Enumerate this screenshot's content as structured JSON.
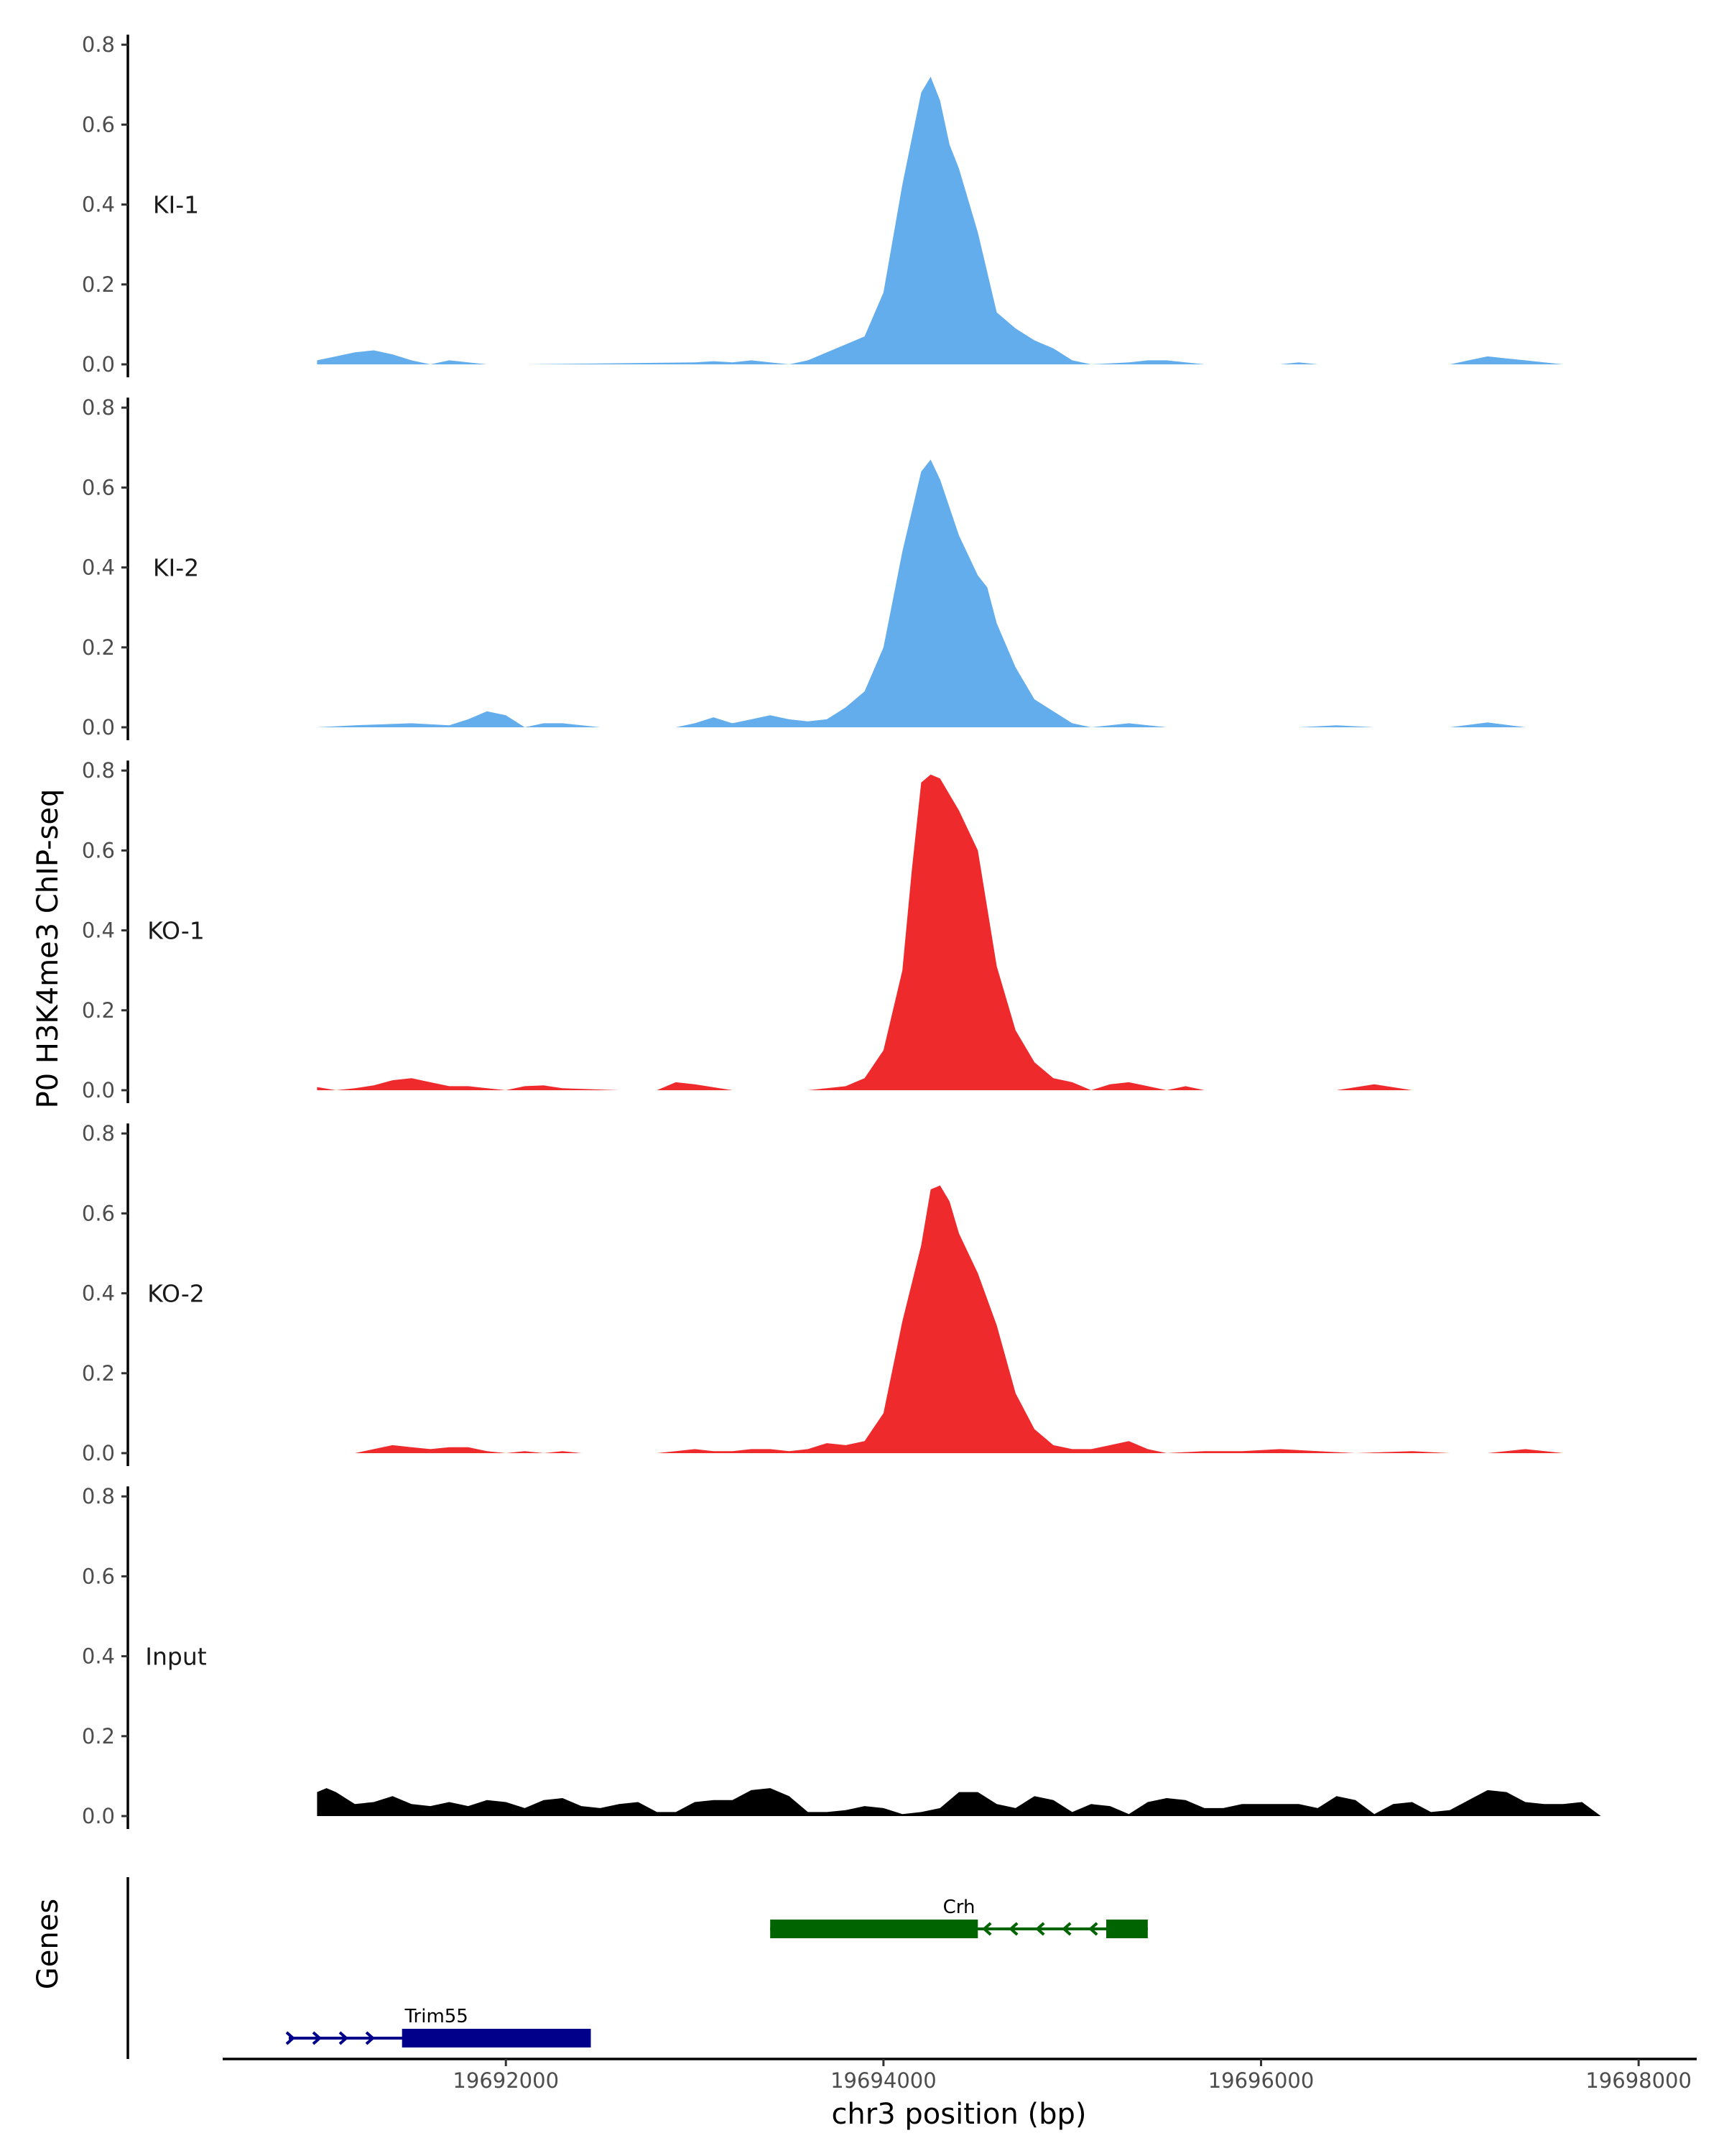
{
  "chart_data": [
    {
      "type": "area",
      "ylabel": "P0 H3K4me3 ChIP-seq",
      "ylim": [
        0,
        0.8
      ],
      "yticks": [
        "0.0",
        "0.2",
        "0.4",
        "0.6",
        "0.8"
      ],
      "xlim": [
        19690500,
        19698300
      ],
      "grid": false,
      "tracks": [
        {
          "name": "KI-1",
          "color": "#63ADEC",
          "x": [
            19691000,
            19691100,
            19691200,
            19691300,
            19691400,
            19691500,
            19691600,
            19691700,
            19691800,
            19691900,
            19692000,
            19692100,
            19693000,
            19693100,
            19693200,
            19693300,
            19693400,
            19693500,
            19693600,
            19693700,
            19693800,
            19693900,
            19694000,
            19694100,
            19694200,
            19694250,
            19694300,
            19694350,
            19694400,
            19694500,
            19694600,
            19694700,
            19694800,
            19694900,
            19695000,
            19695100,
            19695300,
            19695400,
            19695500,
            19695700,
            19696000,
            19696100,
            19696200,
            19696300,
            19696400,
            19696500,
            19696600,
            19696700,
            19696800,
            19696900,
            19697000,
            19697100,
            19697200,
            19697300,
            19697400,
            19697500,
            19697600,
            19697700
          ],
          "y": [
            0.01,
            0.02,
            0.03,
            0.035,
            0.025,
            0.01,
            0,
            0.01,
            0.005,
            0,
            0,
            0,
            0.005,
            0.008,
            0.005,
            0.01,
            0.005,
            0,
            0.01,
            0.03,
            0.05,
            0.07,
            0.18,
            0.45,
            0.68,
            0.72,
            0.66,
            0.55,
            0.49,
            0.33,
            0.13,
            0.09,
            0.06,
            0.04,
            0.01,
            0,
            0.005,
            0.01,
            0.01,
            0,
            0,
            0,
            0.005,
            0,
            0,
            0,
            0,
            0,
            0,
            0,
            0,
            0.01,
            0.02,
            0.015,
            0.01,
            0.005,
            0,
            0
          ]
        },
        {
          "name": "KI-2",
          "color": "#63ADEC",
          "x": [
            19691000,
            19691200,
            19691500,
            19691700,
            19691800,
            19691900,
            19692000,
            19692100,
            19692200,
            19692300,
            19692500,
            19692900,
            19693000,
            19693100,
            19693200,
            19693300,
            19693400,
            19693500,
            19693600,
            19693700,
            19693800,
            19693900,
            19694000,
            19694100,
            19694200,
            19694250,
            19694300,
            19694350,
            19694400,
            19694500,
            19694550,
            19694600,
            19694700,
            19694800,
            19694900,
            19695000,
            19695100,
            19695300,
            19695500,
            19695800,
            19696000,
            19696200,
            19696400,
            19696600,
            19697000,
            19697200,
            19697400,
            19697600
          ],
          "y": [
            0,
            0.005,
            0.01,
            0.005,
            0.02,
            0.04,
            0.03,
            0,
            0.01,
            0.01,
            0,
            0,
            0.01,
            0.025,
            0.01,
            0.02,
            0.03,
            0.02,
            0.015,
            0.02,
            0.05,
            0.09,
            0.2,
            0.44,
            0.64,
            0.67,
            0.62,
            0.55,
            0.48,
            0.38,
            0.35,
            0.26,
            0.15,
            0.07,
            0.04,
            0.01,
            0,
            0.01,
            0,
            0,
            0,
            0,
            0.005,
            0,
            0,
            0.012,
            0,
            0
          ]
        },
        {
          "name": "KO-1",
          "color": "#EE2A2C",
          "x": [
            19691000,
            19691100,
            19691200,
            19691300,
            19691400,
            19691500,
            19691600,
            19691700,
            19691800,
            19691900,
            19692000,
            19692100,
            19692200,
            19692300,
            19692600,
            19692800,
            19692900,
            19693000,
            19693200,
            19693600,
            19693700,
            19693800,
            19693900,
            19694000,
            19694100,
            19694150,
            19694200,
            19694250,
            19694300,
            19694350,
            19694400,
            19694500,
            19694600,
            19694700,
            19694800,
            19694900,
            19695000,
            19695100,
            19695200,
            19695300,
            19695400,
            19695500,
            19695600,
            19695700,
            19696000,
            19696200,
            19696400,
            19696600,
            19696800,
            19697000,
            19697200,
            19697400,
            19697600
          ],
          "y": [
            0.008,
            0,
            0.005,
            0.012,
            0.025,
            0.03,
            0.02,
            0.01,
            0.01,
            0.005,
            0,
            0.01,
            0.012,
            0.005,
            0,
            0,
            0.02,
            0.015,
            0,
            0,
            0.005,
            0.01,
            0.03,
            0.1,
            0.3,
            0.55,
            0.77,
            0.79,
            0.78,
            0.74,
            0.7,
            0.6,
            0.31,
            0.15,
            0.07,
            0.03,
            0.02,
            0,
            0.015,
            0.02,
            0.01,
            0,
            0.01,
            0,
            0,
            0,
            0,
            0.015,
            0,
            0,
            0,
            0,
            0
          ]
        },
        {
          "name": "KO-2",
          "color": "#EE2A2C",
          "x": [
            19691200,
            19691300,
            19691400,
            19691500,
            19691600,
            19691700,
            19691800,
            19691900,
            19692000,
            19692100,
            19692200,
            19692300,
            19692400,
            19692600,
            19692800,
            19692900,
            19693000,
            19693100,
            19693200,
            19693300,
            19693400,
            19693500,
            19693600,
            19693700,
            19693800,
            19693900,
            19694000,
            19694100,
            19694200,
            19694250,
            19694300,
            19694350,
            19694400,
            19694500,
            19694600,
            19694700,
            19694800,
            19694900,
            19695000,
            19695100,
            19695200,
            19695300,
            19695400,
            19695500,
            19695700,
            19695900,
            19696100,
            19696300,
            19696500,
            19696800,
            19697000,
            19697200,
            19697400,
            19697600
          ],
          "y": [
            0,
            0.01,
            0.02,
            0.015,
            0.01,
            0.015,
            0.015,
            0.005,
            0,
            0.005,
            0,
            0.005,
            0,
            0,
            0,
            0.005,
            0.01,
            0.005,
            0.005,
            0.01,
            0.01,
            0.005,
            0.01,
            0.025,
            0.02,
            0.03,
            0.1,
            0.33,
            0.52,
            0.66,
            0.67,
            0.63,
            0.55,
            0.45,
            0.32,
            0.15,
            0.06,
            0.02,
            0.01,
            0.01,
            0.02,
            0.03,
            0.01,
            0,
            0.005,
            0.005,
            0.01,
            0.005,
            0,
            0.005,
            0,
            0,
            0.01,
            0
          ]
        },
        {
          "name": "Input",
          "color": "#000000",
          "x": [
            19691000,
            19691050,
            19691100,
            19691200,
            19691300,
            19691400,
            19691500,
            19691600,
            19691700,
            19691800,
            19691900,
            19692000,
            19692100,
            19692200,
            19692300,
            19692400,
            19692500,
            19692600,
            19692700,
            19692800,
            19692900,
            19693000,
            19693100,
            19693200,
            19693300,
            19693400,
            19693500,
            19693600,
            19693700,
            19693800,
            19693900,
            19694000,
            19694100,
            19694200,
            19694300,
            19694400,
            19694500,
            19694600,
            19694700,
            19694800,
            19694900,
            19695000,
            19695100,
            19695200,
            19695300,
            19695400,
            19695500,
            19695600,
            19695700,
            19695800,
            19695900,
            19696000,
            19696100,
            19696200,
            19696300,
            19696400,
            19696500,
            19696600,
            19696700,
            19696800,
            19696900,
            19697000,
            19697100,
            19697200,
            19697300,
            19697400,
            19697500,
            19697600,
            19697700,
            19697800
          ],
          "y": [
            0.06,
            0.07,
            0.06,
            0.03,
            0.035,
            0.05,
            0.03,
            0.025,
            0.035,
            0.025,
            0.04,
            0.035,
            0.02,
            0.04,
            0.045,
            0.025,
            0.02,
            0.03,
            0.035,
            0.01,
            0.01,
            0.035,
            0.04,
            0.04,
            0.065,
            0.07,
            0.05,
            0.01,
            0.01,
            0.015,
            0.025,
            0.02,
            0.005,
            0.01,
            0.02,
            0.06,
            0.06,
            0.03,
            0.02,
            0.05,
            0.04,
            0.01,
            0.03,
            0.025,
            0.005,
            0.035,
            0.045,
            0.04,
            0.02,
            0.02,
            0.03,
            0.03,
            0.03,
            0.03,
            0.02,
            0.05,
            0.04,
            0.005,
            0.03,
            0.035,
            0.01,
            0.015,
            0.04,
            0.065,
            0.06,
            0.035,
            0.03,
            0.03,
            0.035,
            0
          ]
        }
      ]
    },
    {
      "type": "gene-track",
      "ylabel": "Genes",
      "xlabel": "chr3 position (bp)",
      "xticks": [
        19692000,
        19694000,
        19696000,
        19698000
      ],
      "xticklabels": [
        "19692000",
        "19694000",
        "19696000",
        "19698000"
      ],
      "genes": [
        {
          "name": "Crh",
          "color": "#006400",
          "strand": "-",
          "start": 19693400,
          "end": 19695400,
          "exons": [
            [
              19693400,
              19694500
            ],
            [
              19695180,
              19695400
            ]
          ]
        },
        {
          "name": "Trim55",
          "color": "#00008B",
          "strand": "+",
          "start": 19690850,
          "end": 19692450,
          "exons": [
            [
              19691450,
              19692450
            ]
          ]
        }
      ]
    }
  ]
}
